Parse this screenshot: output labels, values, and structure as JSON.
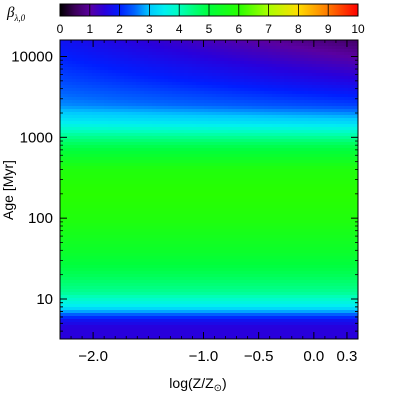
{
  "chart_data": {
    "type": "heatmap",
    "title": "",
    "colorbar": {
      "label": "β",
      "label_sub": "λ,0",
      "range": [
        0,
        10
      ],
      "ticks": [
        0,
        1,
        2,
        3,
        4,
        5,
        6,
        7,
        8,
        9,
        10
      ],
      "tick_labels": [
        "0",
        "1",
        "2",
        "3",
        "4",
        "5",
        "6",
        "7",
        "8",
        "9",
        "10"
      ],
      "colormap": "rainbow (black-purple-blue-cyan-green-yellow-orange-red)"
    },
    "xlabel": "log(Z/Z",
    "xlabel_sub": "⊙",
    "xlabel_close": ")",
    "xlim": [
      -2.3,
      0.4
    ],
    "xticks": [
      -2.0,
      -1.0,
      -0.5,
      0.0,
      0.3
    ],
    "xtick_labels": [
      "−2.0",
      "−1.0",
      "−0.5",
      "0.0",
      "0.3"
    ],
    "ylabel": "Age [Myr]",
    "yscale": "log",
    "ylim": [
      3.2,
      16000
    ],
    "yticks": [
      10,
      100,
      1000,
      10000
    ],
    "ytick_labels": [
      "10",
      "100",
      "1000",
      "10000"
    ],
    "age_profile": [
      {
        "age": 3.2,
        "beta": 1.5
      },
      {
        "age": 4.5,
        "beta": 1.5
      },
      {
        "age": 5.5,
        "beta": 1.8
      },
      {
        "age": 6.5,
        "beta": 2.5
      },
      {
        "age": 8,
        "beta": 3.4
      },
      {
        "age": 12,
        "beta": 4.3
      },
      {
        "age": 20,
        "beta": 4.8
      },
      {
        "age": 40,
        "beta": 5.3
      },
      {
        "age": 100,
        "beta": 5.8
      },
      {
        "age": 200,
        "beta": 6.0
      },
      {
        "age": 400,
        "beta": 5.8
      },
      {
        "age": 800,
        "beta": 4.8
      },
      {
        "age": 1100,
        "beta": 4.2
      },
      {
        "age": 1500,
        "beta": 3.5
      },
      {
        "age": 2500,
        "beta": 2.7
      },
      {
        "age": 5000,
        "beta": 2.3
      },
      {
        "age": 10000,
        "beta": 2.0
      },
      {
        "age": 16000,
        "beta": 1.8
      }
    ],
    "metallicity_trend": "at high metallicity and ages above about 1000 Myr, values drop toward 1 (dark purple in the top-right corner)"
  }
}
